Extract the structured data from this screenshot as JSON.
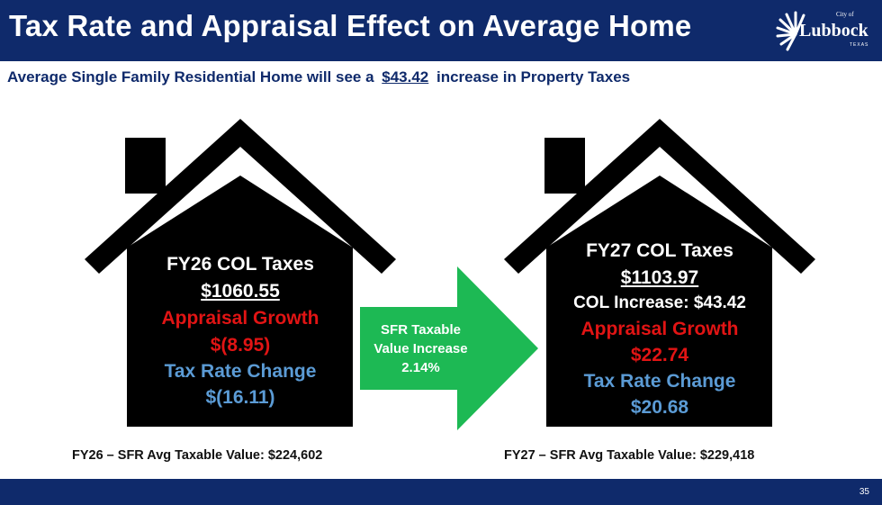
{
  "header": {
    "title": "Tax Rate and Appraisal Effect on Average Home",
    "logo": {
      "city_label": "City of",
      "name": "Lubbock",
      "state": "TEXAS"
    }
  },
  "subtitle": {
    "before": "Average Single Family Residential Home will see a",
    "amount": "$43.42",
    "after": "increase in Property Taxes"
  },
  "fy26": {
    "title": "FY26 COL Taxes",
    "total": "$1060.55",
    "appraisal_label": "Appraisal Growth",
    "appraisal_value": "$(8.95)",
    "rate_label": "Tax Rate Change",
    "rate_value": "$(16.11)",
    "caption": "FY26 – SFR Avg Taxable Value: $224,602"
  },
  "arrow": {
    "line1": "SFR Taxable",
    "line2": "Value Increase",
    "line3": "2.14%",
    "color": "#1db954"
  },
  "fy27": {
    "title": "FY27 COL Taxes",
    "total": "$1103.97",
    "increase": "COL Increase: $43.42",
    "appraisal_label": "Appraisal Growth",
    "appraisal_value": "$22.74",
    "rate_label": "Tax Rate Change",
    "rate_value": "$20.68",
    "caption": "FY27 – SFR Avg Taxable Value: $229,418"
  },
  "footer": {
    "page_number": "35"
  },
  "colors": {
    "navy": "#0f2a6b",
    "red": "#e11414",
    "blue": "#5b9bd5",
    "green": "#1db954"
  }
}
